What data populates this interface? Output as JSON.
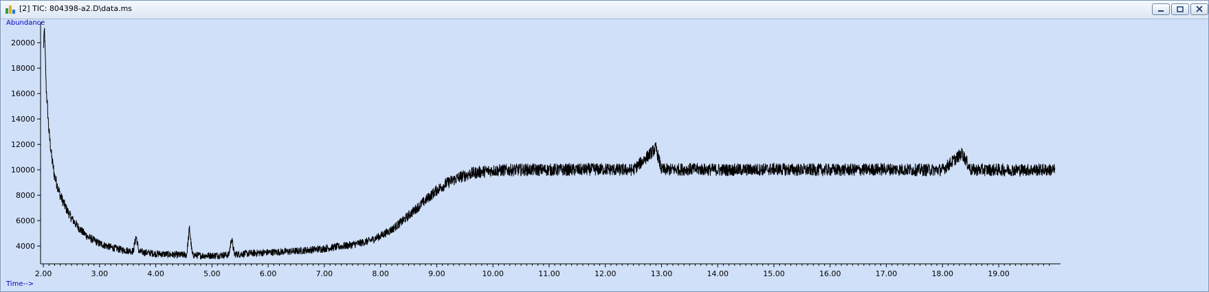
{
  "window": {
    "title": "[2] TIC: 804398-a2.D\\data.ms",
    "icon": "chromatogram-app-icon",
    "buttons": [
      "minimize",
      "restore",
      "close"
    ]
  },
  "chart_data": {
    "type": "line",
    "title": "",
    "xlabel": "Time-->",
    "ylabel": "Abundance",
    "xlim": [
      1.95,
      20.1
    ],
    "ylim": [
      2600,
      21200
    ],
    "grid": false,
    "x_ticks": [
      2,
      3,
      4,
      5,
      6,
      7,
      8,
      9,
      10,
      11,
      12,
      13,
      14,
      15,
      16,
      17,
      18,
      19
    ],
    "x_tick_labels": [
      "2.00",
      "3.00",
      "4.00",
      "5.00",
      "6.00",
      "7.00",
      "8.00",
      "9.00",
      "10.00",
      "11.00",
      "12.00",
      "13.00",
      "14.00",
      "15.00",
      "16.00",
      "17.00",
      "18.00",
      "19.00"
    ],
    "y_ticks": [
      4000,
      6000,
      8000,
      10000,
      12000,
      14000,
      16000,
      18000,
      20000
    ],
    "y_tick_labels": [
      "4000",
      "6000",
      "8000",
      "10000",
      "12000",
      "14000",
      "16000",
      "18000",
      "20000"
    ],
    "line_color": "#000000",
    "background_color": "#d0e0f8",
    "axis_label_color": "#0000c0",
    "series": [
      {
        "x": [
          2.0,
          2.02,
          2.05,
          2.1,
          2.15,
          2.2,
          2.3,
          2.4,
          2.5,
          2.6,
          2.7,
          2.8,
          3.0,
          3.2,
          3.4,
          3.6,
          3.65,
          3.7,
          3.8,
          4.0,
          4.2,
          4.4,
          4.55,
          4.6,
          4.65,
          4.8,
          5.0,
          5.2,
          5.3,
          5.35,
          5.4,
          5.6,
          5.8,
          6.0,
          6.5,
          7.0,
          7.5,
          7.8,
          8.0,
          8.2,
          8.4,
          8.6,
          8.8,
          9.0,
          9.2,
          9.4,
          9.6,
          9.8,
          10.0,
          10.5,
          11.0,
          11.5,
          12.0,
          12.2,
          12.5,
          12.9,
          13.0,
          13.5,
          14.0,
          14.5,
          15.0,
          15.5,
          16.0,
          16.5,
          17.0,
          17.5,
          18.0,
          18.35,
          18.5,
          19.0,
          19.5,
          19.9,
          20.0
        ],
        "y": [
          19500,
          21000,
          16500,
          13000,
          10900,
          9500,
          8000,
          7000,
          6200,
          5600,
          5100,
          4700,
          4200,
          3900,
          3700,
          3600,
          4800,
          3550,
          3500,
          3400,
          3350,
          3300,
          3300,
          5400,
          3300,
          3250,
          3250,
          3300,
          3300,
          4600,
          3350,
          3400,
          3450,
          3500,
          3600,
          3800,
          4100,
          4400,
          4800,
          5300,
          6000,
          6800,
          7600,
          8400,
          9000,
          9400,
          9700,
          9850,
          9950,
          10000,
          10000,
          10000,
          10050,
          10000,
          10000,
          11700,
          10000,
          10050,
          10000,
          10000,
          10050,
          10000,
          10000,
          10000,
          10050,
          10000,
          10000,
          11300,
          10000,
          10000,
          10000,
          10000,
          10000
        ],
        "noise_amplitude": 500
      }
    ]
  }
}
